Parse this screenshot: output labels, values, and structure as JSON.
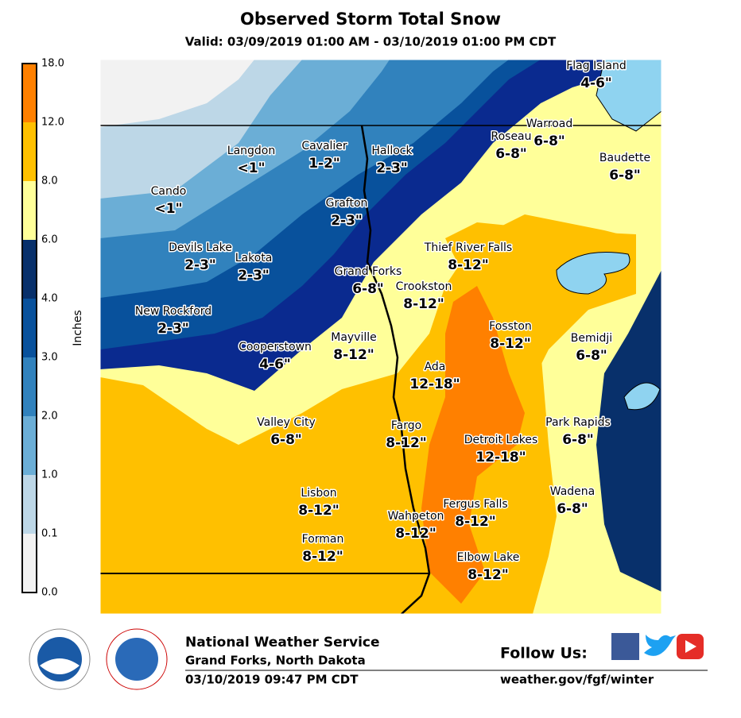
{
  "header": {
    "title": "Observed Storm Total Snow",
    "subtitle": "Valid: 03/09/2019 01:00 AM - 03/10/2019 01:00 PM CDT"
  },
  "legend": {
    "title": "Inches",
    "labels": [
      "0.0",
      "0.1",
      "1.0",
      "2.0",
      "3.0",
      "4.0",
      "6.0",
      "8.0",
      "12.0",
      "18.0"
    ],
    "colors": [
      "#f2f2f2",
      "#bdd7e7",
      "#6baed6",
      "#3182bd",
      "#08519c",
      "#08306b",
      "#ffff99",
      "#ffc000",
      "#ff8000"
    ]
  },
  "cities": [
    {
      "name": "Flag Island",
      "amount": "4-6\""
    },
    {
      "name": "Warroad",
      "amount": "6-8\""
    },
    {
      "name": "Roseau",
      "amount": "6-8\""
    },
    {
      "name": "Baudette",
      "amount": "6-8\""
    },
    {
      "name": "Langdon",
      "amount": "<1\""
    },
    {
      "name": "Cavalier",
      "amount": "1-2\""
    },
    {
      "name": "Hallock",
      "amount": "2-3\""
    },
    {
      "name": "Cando",
      "amount": "<1\""
    },
    {
      "name": "Grafton",
      "amount": "2-3\""
    },
    {
      "name": "Devils Lake",
      "amount": "2-3\""
    },
    {
      "name": "Lakota",
      "amount": "2-3\""
    },
    {
      "name": "Thief River Falls",
      "amount": "8-12\""
    },
    {
      "name": "Grand Forks",
      "amount": "6-8\""
    },
    {
      "name": "Crookston",
      "amount": "8-12\""
    },
    {
      "name": "New Rockford",
      "amount": "2-3\""
    },
    {
      "name": "Fosston",
      "amount": "8-12\""
    },
    {
      "name": "Mayville",
      "amount": "8-12\""
    },
    {
      "name": "Bemidji",
      "amount": "6-8\""
    },
    {
      "name": "Cooperstown",
      "amount": "4-6\""
    },
    {
      "name": "Ada",
      "amount": "12-18\""
    },
    {
      "name": "Valley City",
      "amount": "6-8\""
    },
    {
      "name": "Park Rapids",
      "amount": "6-8\""
    },
    {
      "name": "Fargo",
      "amount": "8-12\""
    },
    {
      "name": "Detroit Lakes",
      "amount": "12-18\""
    },
    {
      "name": "Lisbon",
      "amount": "8-12\""
    },
    {
      "name": "Wadena",
      "amount": "6-8\""
    },
    {
      "name": "Fergus Falls",
      "amount": "8-12\""
    },
    {
      "name": "Wahpeton",
      "amount": "8-12\""
    },
    {
      "name": "Forman",
      "amount": "8-12\""
    },
    {
      "name": "Elbow Lake",
      "amount": "8-12\""
    }
  ],
  "footer": {
    "office": "National Weather Service",
    "location": "Grand Forks, North Dakota",
    "issued": "03/10/2019 09:47 PM CDT",
    "follow": "Follow Us:",
    "url": "weather.gov/fgf/winter"
  }
}
